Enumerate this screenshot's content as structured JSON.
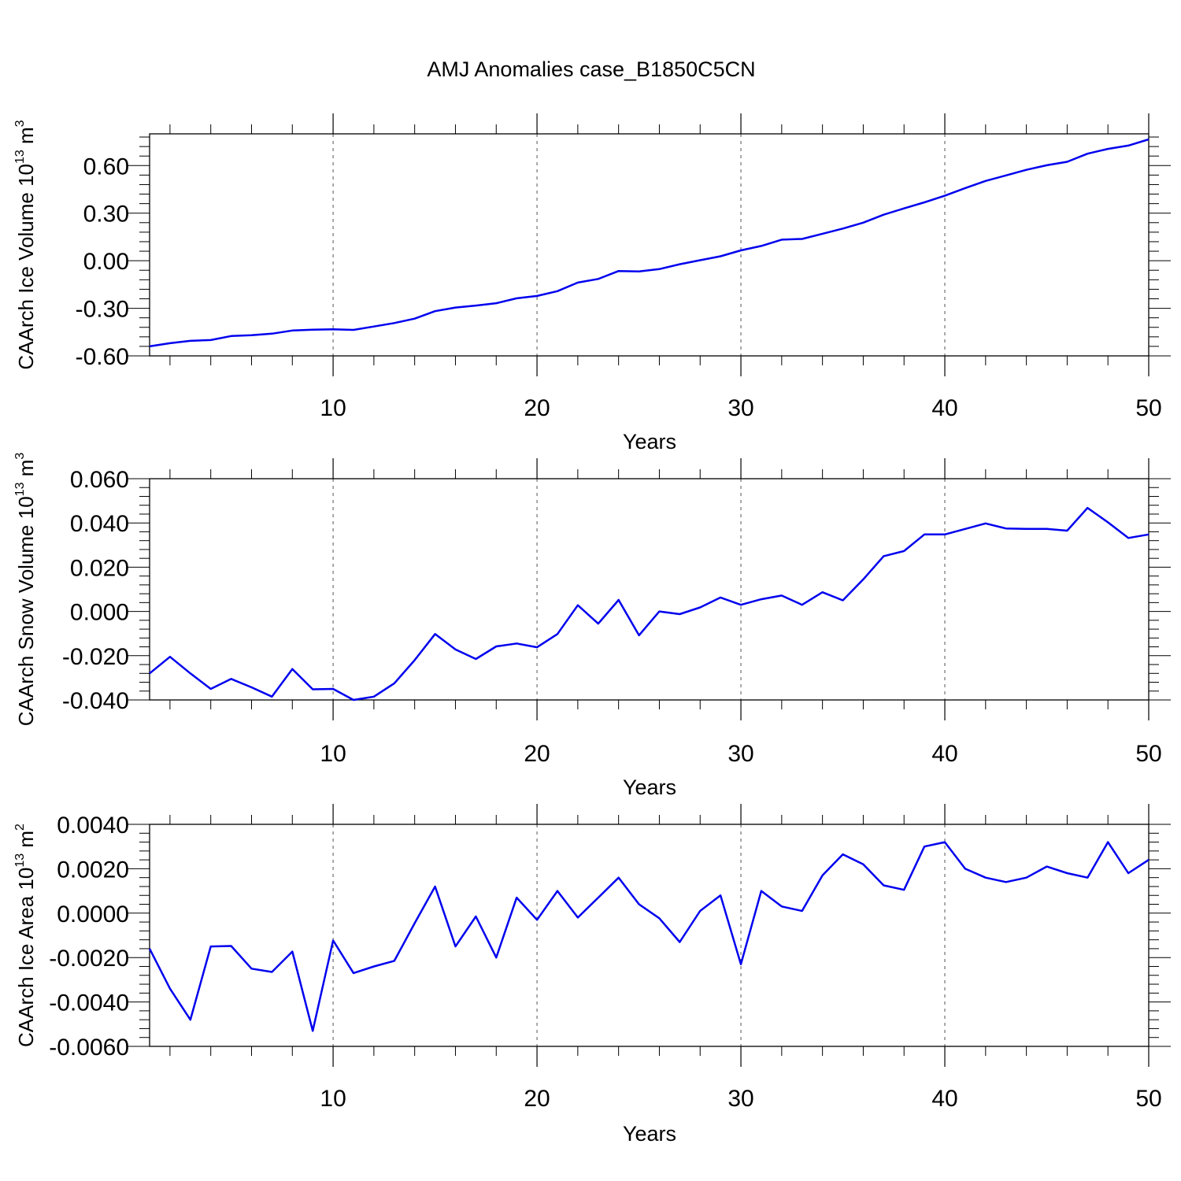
{
  "title": "AMJ Anomalies case_B1850C5CN",
  "colors": {
    "line": "#0000ee",
    "axis": "#000000",
    "grid": "#555555"
  },
  "chart_data": [
    {
      "type": "line",
      "xlabel": "Years",
      "ylabel": "CAArch Ice Volume 10",
      "ylabel_exp": "13",
      "ylabel_unit": " m",
      "ylabel_unit_exp": "3",
      "xlim": [
        1,
        50
      ],
      "ylim": [
        -0.6,
        0.8
      ],
      "xticks": [
        10,
        20,
        30,
        40,
        50
      ],
      "xtick_labels": [
        "10",
        "20",
        "30",
        "40",
        "50"
      ],
      "yticks": [
        -0.6,
        -0.3,
        0.0,
        0.3,
        0.6
      ],
      "ytick_labels": [
        "-0.60",
        "-0.30",
        "0.00",
        "0.30",
        "0.60"
      ],
      "grid": "vertical dashed at major x ticks",
      "series": [
        {
          "x": [
            1,
            2,
            3,
            4,
            5,
            6,
            7,
            8,
            9,
            10,
            11,
            12,
            13,
            14,
            15,
            16,
            17,
            18,
            19,
            20,
            21,
            22,
            23,
            24,
            25,
            26,
            27,
            28,
            29,
            30,
            31,
            32,
            33,
            34,
            35,
            36,
            37,
            38,
            39,
            40,
            41,
            42,
            43,
            44,
            45,
            46,
            47,
            48,
            49,
            50
          ],
          "values": [
            -0.54,
            -0.52,
            -0.505,
            -0.5,
            -0.475,
            -0.47,
            -0.46,
            -0.44,
            -0.435,
            -0.432,
            -0.436,
            -0.415,
            -0.393,
            -0.365,
            -0.318,
            -0.295,
            -0.283,
            -0.268,
            -0.237,
            -0.222,
            -0.192,
            -0.138,
            -0.115,
            -0.065,
            -0.068,
            -0.053,
            -0.022,
            0.003,
            0.028,
            0.065,
            0.093,
            0.133,
            0.137,
            0.17,
            0.203,
            0.24,
            0.29,
            0.33,
            0.368,
            0.41,
            0.458,
            0.503,
            0.538,
            0.573,
            0.602,
            0.624,
            0.675,
            0.705,
            0.726,
            0.765
          ]
        }
      ]
    },
    {
      "type": "line",
      "xlabel": "Years",
      "ylabel": "CAArch Snow Volume 10",
      "ylabel_exp": "13",
      "ylabel_unit": " m",
      "ylabel_unit_exp": "3",
      "xlim": [
        1,
        50
      ],
      "ylim": [
        -0.04,
        0.06
      ],
      "xticks": [
        10,
        20,
        30,
        40,
        50
      ],
      "xtick_labels": [
        "10",
        "20",
        "30",
        "40",
        "50"
      ],
      "yticks": [
        -0.04,
        -0.02,
        0.0,
        0.02,
        0.04,
        0.06
      ],
      "ytick_labels": [
        "-0.040",
        "-0.020",
        "0.000",
        "0.020",
        "0.040",
        "0.060"
      ],
      "grid": "vertical dashed at major x ticks",
      "series": [
        {
          "x": [
            1,
            2,
            3,
            4,
            5,
            6,
            7,
            8,
            9,
            10,
            11,
            12,
            13,
            14,
            15,
            16,
            17,
            18,
            19,
            20,
            21,
            22,
            23,
            24,
            25,
            26,
            27,
            28,
            29,
            30,
            31,
            32,
            33,
            34,
            35,
            36,
            37,
            38,
            39,
            40,
            41,
            42,
            43,
            44,
            45,
            46,
            47,
            48,
            49,
            50
          ],
          "values": [
            -0.028,
            -0.0205,
            -0.028,
            -0.035,
            -0.0305,
            -0.0343,
            -0.0385,
            -0.026,
            -0.0352,
            -0.035,
            -0.04,
            -0.0385,
            -0.0325,
            -0.022,
            -0.0102,
            -0.0172,
            -0.0215,
            -0.0158,
            -0.0145,
            -0.0162,
            -0.0102,
            0.0028,
            -0.0055,
            0.0052,
            -0.0108,
            0.0,
            -0.0012,
            0.0018,
            0.0063,
            0.003,
            0.0055,
            0.0072,
            0.003,
            0.0087,
            0.005,
            0.0145,
            0.025,
            0.0273,
            0.0348,
            0.0348,
            0.0373,
            0.0398,
            0.0375,
            0.0373,
            0.0373,
            0.0365,
            0.0468,
            0.0403,
            0.0332,
            0.0348
          ]
        }
      ]
    },
    {
      "type": "line",
      "xlabel": "Years",
      "ylabel": "CAArch Ice Area 10",
      "ylabel_exp": "13",
      "ylabel_unit": " m",
      "ylabel_unit_exp": "2",
      "xlim": [
        1,
        50
      ],
      "ylim": [
        -0.006,
        0.004
      ],
      "xticks": [
        10,
        20,
        30,
        40,
        50
      ],
      "xtick_labels": [
        "10",
        "20",
        "30",
        "40",
        "50"
      ],
      "yticks": [
        -0.006,
        -0.004,
        -0.002,
        0.0,
        0.002,
        0.004
      ],
      "ytick_labels": [
        "-0.0060",
        "-0.0040",
        "-0.0020",
        "0.0000",
        "0.0020",
        "0.0040"
      ],
      "grid": "vertical dashed at major x ticks",
      "series": [
        {
          "x": [
            1,
            2,
            3,
            4,
            5,
            6,
            7,
            8,
            9,
            10,
            11,
            12,
            13,
            14,
            15,
            16,
            17,
            18,
            19,
            20,
            21,
            22,
            23,
            24,
            25,
            26,
            27,
            28,
            29,
            30,
            31,
            32,
            33,
            34,
            35,
            36,
            37,
            38,
            39,
            40,
            41,
            42,
            43,
            44,
            45,
            46,
            47,
            48,
            49,
            50
          ],
          "values": [
            -0.0016,
            -0.0034,
            -0.0048,
            -0.0015,
            -0.00148,
            -0.0025,
            -0.00265,
            -0.00173,
            -0.0053,
            -0.00123,
            -0.0027,
            -0.0024,
            -0.00215,
            -0.00045,
            0.0012,
            -0.0015,
            -0.00015,
            -0.002,
            0.0007,
            -0.0003,
            0.001,
            -0.0002,
            0.0007,
            0.0016,
            0.0004,
            -0.00023,
            -0.0013,
            0.0001,
            0.0008,
            -0.0023,
            0.001,
            0.0003,
            0.0001,
            0.0017,
            0.00265,
            0.0022,
            0.00125,
            0.00105,
            0.003,
            0.0032,
            0.002,
            0.0016,
            0.0014,
            0.0016,
            0.0021,
            0.0018,
            0.0016,
            0.0032,
            0.0018,
            0.0024
          ]
        }
      ]
    }
  ]
}
